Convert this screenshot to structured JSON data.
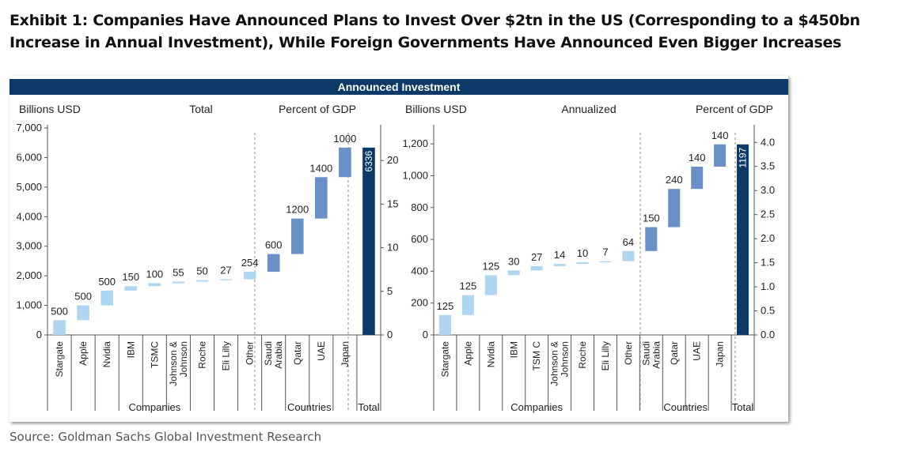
{
  "title": "Exhibit 1: Companies Have Announced Plans to Invest Over $2tn in the US (Corresponding to a $450bn Increase in Annual Investment), While Foreign Governments Have Announced Even Bigger Increases",
  "source": "Source: Goldman Sachs Global Investment Research",
  "banner": "Announced Investment",
  "colors": {
    "banner": "#0b3a68",
    "company": "#aed6f1",
    "country": "#6a90c8",
    "total": "#0b3a68",
    "axis": "#555555",
    "divider": "#888888"
  },
  "chart_data": [
    {
      "type": "bar",
      "subtype": "waterfall",
      "title": "Total",
      "ylabel": "Billions USD",
      "y2label": "Percent of GDP",
      "ylim": [
        0,
        7000
      ],
      "yticks": [
        0,
        1000,
        2000,
        3000,
        4000,
        5000,
        6000,
        7000
      ],
      "yticklabels": [
        "0",
        "1,000",
        "2,000",
        "3,000",
        "4,000",
        "5,000",
        "6,000",
        "7,000"
      ],
      "y2lim": [
        0,
        23.73
      ],
      "y2ticks": [
        0,
        5,
        10,
        15,
        20
      ],
      "y2ticklabels": [
        "0",
        "5",
        "10",
        "15",
        "20"
      ],
      "categories": [
        "Stargate",
        "Apple",
        "Nvidia",
        "IBM",
        "TSMC",
        "Johnson & Johnson",
        "Roche",
        "Eli Lilly",
        "Other",
        "Saudi Arabia",
        "Qatar",
        "UAE",
        "Japan",
        "Total"
      ],
      "tick_lines": [
        [
          "Stargate"
        ],
        [
          "Apple"
        ],
        [
          "Nvidia"
        ],
        [
          "IBM"
        ],
        [
          "TSMC"
        ],
        [
          "Johnson &",
          "Johnson"
        ],
        [
          "Roche"
        ],
        [
          "Eli Lilly"
        ],
        [
          "Other"
        ],
        [
          "Saudi",
          "Arabia"
        ],
        [
          "Qatar"
        ],
        [
          "UAE"
        ],
        [
          "Japan"
        ],
        []
      ],
      "values": [
        500,
        500,
        500,
        150,
        100,
        55,
        50,
        27,
        254,
        600,
        1200,
        1400,
        1000,
        6336
      ],
      "value_labels": [
        "500",
        "500",
        "500",
        "150",
        "100",
        "55",
        "50",
        "27",
        "254",
        "600",
        "1200",
        "1400",
        "1000",
        "6336"
      ],
      "groups": [
        {
          "name": "Companies",
          "members": 9
        },
        {
          "name": "Countries",
          "members": 4
        },
        {
          "name": "Total",
          "members": 1
        }
      ]
    },
    {
      "type": "bar",
      "subtype": "waterfall",
      "title": "Annualized",
      "ylabel": "Billions USD",
      "y2label": "Percent of GDP",
      "ylim": [
        0,
        1300
      ],
      "yticks": [
        0,
        200,
        400,
        600,
        800,
        1000,
        1200
      ],
      "yticklabels": [
        "0",
        "200",
        "400",
        "600",
        "800",
        "1,000",
        "1,200"
      ],
      "y2lim": [
        0,
        4.3
      ],
      "y2ticks": [
        0,
        0.5,
        1,
        1.5,
        2,
        2.5,
        3,
        3.5,
        4
      ],
      "y2ticklabels": [
        "0.0",
        "0.5",
        "1.0",
        "1.5",
        "2.0",
        "2.5",
        "3.0",
        "3.5",
        "4.0"
      ],
      "categories": [
        "Stargate",
        "Apple",
        "Nvidia",
        "IBM",
        "TSMC",
        "Johnson & Johnson",
        "Roche",
        "Eli Lilly",
        "Other",
        "Saudi Arabia",
        "Qatar",
        "UAE",
        "Japan",
        "Total"
      ],
      "tick_lines": [
        [
          "Stargate"
        ],
        [
          "Apple"
        ],
        [
          "Nvidia"
        ],
        [
          "IBM"
        ],
        [
          "TSM C"
        ],
        [
          "Johnson &",
          "Johnson"
        ],
        [
          "Roche"
        ],
        [
          "Eli Lilly"
        ],
        [
          "Other"
        ],
        [
          "Saudi",
          "Arabia"
        ],
        [
          "Qatar"
        ],
        [
          "UAE"
        ],
        [
          "Japan"
        ],
        []
      ],
      "values": [
        125,
        125,
        125,
        30,
        27,
        14,
        10,
        7,
        64,
        150,
        240,
        140,
        140,
        1197
      ],
      "value_labels": [
        "125",
        "125",
        "125",
        "30",
        "27",
        "14",
        "10",
        "7",
        "64",
        "150",
        "240",
        "140",
        "140",
        "1197"
      ],
      "groups": [
        {
          "name": "Companies",
          "members": 9
        },
        {
          "name": "Countries",
          "members": 4
        },
        {
          "name": "Total",
          "members": 1
        }
      ]
    }
  ]
}
